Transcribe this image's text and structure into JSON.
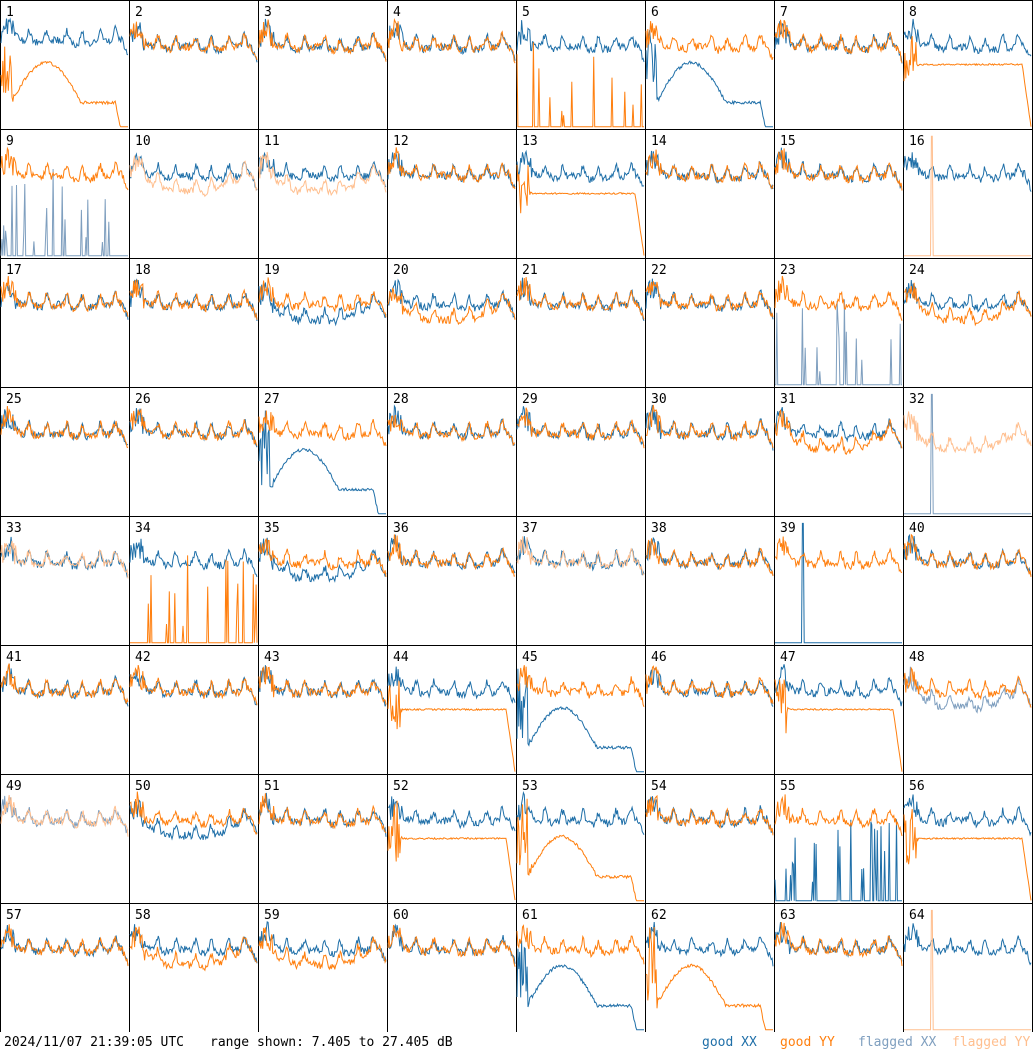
{
  "chart_data": {
    "type": "line",
    "grid": "8x8 small multiples",
    "panel_labels": [
      "1",
      "2",
      "3",
      "4",
      "5",
      "6",
      "7",
      "8",
      "9",
      "10",
      "11",
      "12",
      "13",
      "14",
      "15",
      "16",
      "17",
      "18",
      "19",
      "20",
      "21",
      "22",
      "23",
      "24",
      "25",
      "26",
      "27",
      "28",
      "29",
      "30",
      "31",
      "32",
      "33",
      "34",
      "35",
      "36",
      "37",
      "38",
      "39",
      "40",
      "41",
      "42",
      "43",
      "44",
      "45",
      "46",
      "47",
      "48",
      "49",
      "50",
      "51",
      "52",
      "53",
      "54",
      "55",
      "56",
      "57",
      "58",
      "59",
      "60",
      "61",
      "62",
      "63",
      "64"
    ],
    "y_range_db": [
      7.405,
      27.405
    ],
    "series": [
      {
        "name": "good XX",
        "color": "#1f6fa8"
      },
      {
        "name": "good YY",
        "color": "#ff7f0e"
      },
      {
        "name": "flagged XX",
        "color": "#7f9fbf"
      },
      {
        "name": "flagged YY",
        "color": "#ffbf8f"
      }
    ],
    "panels": [
      {
        "x": "weird",
        "y": "dip",
        "xf": 0,
        "yf": 0
      },
      {
        "x": "typ",
        "y": "typ",
        "xf": 0,
        "yf": 0
      },
      {
        "x": "typ",
        "y": "typ",
        "xf": 0,
        "yf": 0
      },
      {
        "x": "typ",
        "y": "typ",
        "xf": 0,
        "yf": 0
      },
      {
        "x": "typ",
        "y": "spikes",
        "xf": 0,
        "yf": 0
      },
      {
        "x": "dip",
        "y": "typ",
        "xf": 0,
        "yf": 0
      },
      {
        "x": "typ",
        "y": "typ",
        "xf": 0,
        "yf": 0
      },
      {
        "x": "typ",
        "y": "flatlow",
        "xf": 0,
        "yf": 0
      },
      {
        "x": "spikes",
        "y": "typ",
        "xf": 1,
        "yf": 0
      },
      {
        "x": "typ",
        "y": "low",
        "xf": 0,
        "yf": 1
      },
      {
        "x": "typ",
        "y": "low",
        "xf": 0,
        "yf": 1
      },
      {
        "x": "typ",
        "y": "typ",
        "xf": 0,
        "yf": 0
      },
      {
        "x": "typ",
        "y": "flatlow",
        "xf": 0,
        "yf": 0
      },
      {
        "x": "typ",
        "y": "typ",
        "xf": 0,
        "yf": 0
      },
      {
        "x": "typ",
        "y": "typ",
        "xf": 0,
        "yf": 0
      },
      {
        "x": "typ",
        "y": "spike1",
        "xf": 0,
        "yf": 1
      },
      {
        "x": "typ",
        "y": "typ",
        "xf": 0,
        "yf": 0
      },
      {
        "x": "typ",
        "y": "typ",
        "xf": 0,
        "yf": 0
      },
      {
        "x": "low",
        "y": "typ",
        "xf": 0,
        "yf": 0
      },
      {
        "x": "typ",
        "y": "low",
        "xf": 0,
        "yf": 0
      },
      {
        "x": "typ",
        "y": "typ",
        "xf": 0,
        "yf": 0
      },
      {
        "x": "typ",
        "y": "typ",
        "xf": 0,
        "yf": 0
      },
      {
        "x": "spikes",
        "y": "typ",
        "xf": 1,
        "yf": 0
      },
      {
        "x": "typ",
        "y": "low",
        "xf": 0,
        "yf": 0
      },
      {
        "x": "typ",
        "y": "typ",
        "xf": 0,
        "yf": 0
      },
      {
        "x": "typ",
        "y": "typ",
        "xf": 0,
        "yf": 0
      },
      {
        "x": "dip",
        "y": "typ",
        "xf": 0,
        "yf": 0
      },
      {
        "x": "typ",
        "y": "typ",
        "xf": 0,
        "yf": 0
      },
      {
        "x": "typ",
        "y": "typ",
        "xf": 0,
        "yf": 0
      },
      {
        "x": "typ",
        "y": "typ",
        "xf": 0,
        "yf": 0
      },
      {
        "x": "typ",
        "y": "low",
        "xf": 0,
        "yf": 0
      },
      {
        "x": "spike1",
        "y": "low",
        "xf": 1,
        "yf": 1
      },
      {
        "x": "typ",
        "y": "typ",
        "xf": 0,
        "yf": 1
      },
      {
        "x": "typ",
        "y": "spikes",
        "xf": 0,
        "yf": 0
      },
      {
        "x": "low",
        "y": "typ",
        "xf": 0,
        "yf": 0
      },
      {
        "x": "typ",
        "y": "typ",
        "xf": 0,
        "yf": 0
      },
      {
        "x": "typ",
        "y": "typ",
        "xf": 0,
        "yf": 1
      },
      {
        "x": "typ",
        "y": "typ",
        "xf": 0,
        "yf": 0
      },
      {
        "x": "spike1",
        "y": "typ",
        "xf": 0,
        "yf": 0
      },
      {
        "x": "typ",
        "y": "typ",
        "xf": 0,
        "yf": 0
      },
      {
        "x": "typ",
        "y": "typ",
        "xf": 0,
        "yf": 0
      },
      {
        "x": "typ",
        "y": "typ",
        "xf": 0,
        "yf": 0
      },
      {
        "x": "typ",
        "y": "typ",
        "xf": 0,
        "yf": 0
      },
      {
        "x": "typ",
        "y": "flatlow",
        "xf": 0,
        "yf": 0
      },
      {
        "x": "dip",
        "y": "typ",
        "xf": 0,
        "yf": 0
      },
      {
        "x": "typ",
        "y": "typ",
        "xf": 0,
        "yf": 0
      },
      {
        "x": "typ",
        "y": "flatlow",
        "xf": 0,
        "yf": 0
      },
      {
        "x": "low",
        "y": "typ",
        "xf": 1,
        "yf": 0
      },
      {
        "x": "typ",
        "y": "typ",
        "xf": 1,
        "yf": 1
      },
      {
        "x": "low",
        "y": "typ",
        "xf": 0,
        "yf": 0
      },
      {
        "x": "typ",
        "y": "typ",
        "xf": 0,
        "yf": 0
      },
      {
        "x": "typ",
        "y": "flatlow",
        "xf": 0,
        "yf": 0
      },
      {
        "x": "typ",
        "y": "dip",
        "xf": 0,
        "yf": 0
      },
      {
        "x": "typ",
        "y": "typ",
        "xf": 0,
        "yf": 0
      },
      {
        "x": "spikes",
        "y": "typ",
        "xf": 0,
        "yf": 0
      },
      {
        "x": "typ",
        "y": "flatlow",
        "xf": 0,
        "yf": 0
      },
      {
        "x": "typ",
        "y": "typ",
        "xf": 0,
        "yf": 0
      },
      {
        "x": "typ",
        "y": "low",
        "xf": 0,
        "yf": 0
      },
      {
        "x": "typ",
        "y": "low",
        "xf": 0,
        "yf": 0
      },
      {
        "x": "typ",
        "y": "typ",
        "xf": 0,
        "yf": 0
      },
      {
        "x": "dip",
        "y": "typ",
        "xf": 0,
        "yf": 0
      },
      {
        "x": "typ",
        "y": "dip",
        "xf": 0,
        "yf": 0
      },
      {
        "x": "typ",
        "y": "typ",
        "xf": 0,
        "yf": 0
      },
      {
        "x": "typ",
        "y": "spike1",
        "xf": 0,
        "yf": 1
      }
    ]
  },
  "footer": {
    "timestamp": "2024/11/07 21:39:05 UTC",
    "range_text": "range shown: 7.405 to 27.405 dB"
  },
  "legend": {
    "good_xx": "good XX",
    "good_yy": "good YY",
    "flagged_xx": "flagged XX",
    "flagged_yy": "flagged YY"
  }
}
